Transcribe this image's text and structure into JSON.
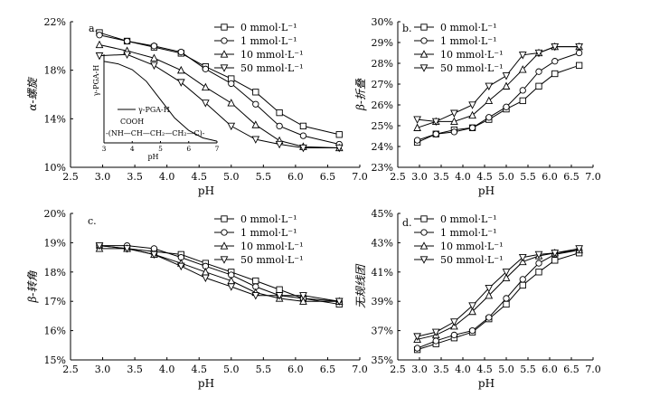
{
  "chart_data": [
    {
      "type": "line",
      "panel_label": "a.",
      "ylabel": "α-螺旋",
      "xlabel": "pH",
      "xlim": [
        2.5,
        7.0
      ],
      "ylim": [
        10,
        22
      ],
      "xticks": [
        "2.5",
        "3.0",
        "3.5",
        "4.0",
        "4.5",
        "5.0",
        "5.5",
        "6.0",
        "6.5",
        "7.0"
      ],
      "yticks": [
        "10%",
        "14%",
        "18%",
        "22%"
      ],
      "ytick_values": [
        10,
        14,
        18,
        22
      ],
      "x": [
        2.95,
        3.38,
        3.8,
        4.22,
        4.6,
        5.0,
        5.38,
        5.75,
        6.12,
        6.68
      ],
      "series": [
        {
          "name": "0 mmol·L⁻¹",
          "marker": "square",
          "values": [
            21.1,
            20.4,
            19.9,
            19.4,
            18.3,
            17.3,
            16.2,
            14.5,
            13.4,
            12.7
          ]
        },
        {
          "name": "1 mmol·L⁻¹",
          "marker": "circle",
          "values": [
            20.9,
            20.4,
            20.0,
            19.5,
            18.1,
            16.9,
            15.2,
            13.4,
            12.6,
            11.9
          ]
        },
        {
          "name": "10 mmol·L⁻¹",
          "marker": "triangle-up",
          "values": [
            20.1,
            19.6,
            19.0,
            18.0,
            16.6,
            15.3,
            13.5,
            12.2,
            11.7,
            11.6
          ]
        },
        {
          "name": "50 mmol·L⁻¹",
          "marker": "triangle-down",
          "values": [
            19.2,
            19.3,
            18.4,
            17.0,
            15.3,
            13.4,
            12.3,
            11.9,
            11.6,
            11.6
          ]
        }
      ],
      "inset": {
        "ylabel": "γ-PGA-H",
        "xlabel": "pH",
        "xticks": [
          "3",
          "4",
          "5",
          "6",
          "7"
        ],
        "xlim": [
          3,
          7
        ],
        "curve_x": [
          3.0,
          3.5,
          4.0,
          4.5,
          5.0,
          5.5,
          6.0,
          6.5,
          7.0
        ],
        "curve_y": [
          0.98,
          0.95,
          0.88,
          0.74,
          0.52,
          0.3,
          0.15,
          0.06,
          0.02
        ],
        "legend": "γ-PGA-H",
        "formula_line1": "COOH",
        "formula_line2": "-(NH—CH—CH₂—CH₂—C)-"
      }
    },
    {
      "type": "line",
      "panel_label": "b.",
      "ylabel": "β-折叠",
      "xlabel": "pH",
      "xlim": [
        2.5,
        7.0
      ],
      "ylim": [
        23,
        30
      ],
      "xticks": [
        "2.5",
        "3.0",
        "3.5",
        "4.0",
        "4.5",
        "5.0",
        "5.5",
        "6.0",
        "6.5",
        "7.0"
      ],
      "yticks": [
        "23%",
        "24%",
        "25%",
        "26%",
        "27%",
        "28%",
        "29%",
        "30%"
      ],
      "ytick_values": [
        23,
        24,
        25,
        26,
        27,
        28,
        29,
        30
      ],
      "x": [
        2.95,
        3.38,
        3.8,
        4.22,
        4.6,
        5.0,
        5.38,
        5.75,
        6.12,
        6.68
      ],
      "series": [
        {
          "name": "0 mmol·L⁻¹",
          "marker": "square",
          "values": [
            24.2,
            24.6,
            24.8,
            24.9,
            25.3,
            25.8,
            26.2,
            26.9,
            27.5,
            27.9
          ]
        },
        {
          "name": "1 mmol·L⁻¹",
          "marker": "circle",
          "values": [
            24.3,
            24.6,
            24.7,
            24.9,
            25.4,
            25.9,
            26.7,
            27.6,
            28.1,
            28.5
          ]
        },
        {
          "name": "10 mmol·L⁻¹",
          "marker": "triangle-up",
          "values": [
            24.9,
            25.2,
            25.2,
            25.5,
            26.2,
            26.9,
            27.7,
            28.5,
            28.8,
            28.8
          ]
        },
        {
          "name": "50 mmol·L⁻¹",
          "marker": "triangle-down",
          "values": [
            25.3,
            25.2,
            25.6,
            26.0,
            26.9,
            27.4,
            28.4,
            28.5,
            28.8,
            28.8
          ]
        }
      ]
    },
    {
      "type": "line",
      "panel_label": "c.",
      "ylabel": "β-转角",
      "xlabel": "pH",
      "xlim": [
        2.5,
        7.0
      ],
      "ylim": [
        15,
        20
      ],
      "xticks": [
        "2.5",
        "3.0",
        "3.5",
        "4.0",
        "4.5",
        "5.0",
        "5.5",
        "6.0",
        "6.5",
        "7.0"
      ],
      "yticks": [
        "15%",
        "16%",
        "17%",
        "18%",
        "19%",
        "20%"
      ],
      "ytick_values": [
        15,
        16,
        17,
        18,
        19,
        20
      ],
      "x": [
        2.95,
        3.38,
        3.8,
        4.22,
        4.6,
        5.0,
        5.38,
        5.75,
        6.12,
        6.68
      ],
      "series": [
        {
          "name": "0 mmol·L⁻¹",
          "marker": "square",
          "values": [
            18.9,
            18.8,
            18.7,
            18.6,
            18.3,
            18.0,
            17.7,
            17.4,
            17.1,
            16.9
          ]
        },
        {
          "name": "1 mmol·L⁻¹",
          "marker": "circle",
          "values": [
            18.9,
            18.9,
            18.8,
            18.5,
            18.2,
            17.9,
            17.5,
            17.2,
            17.1,
            17.0
          ]
        },
        {
          "name": "10 mmol·L⁻¹",
          "marker": "triangle-up",
          "values": [
            18.8,
            18.8,
            18.6,
            18.3,
            18.0,
            17.7,
            17.3,
            17.1,
            17.0,
            17.0
          ]
        },
        {
          "name": "50 mmol·L⁻¹",
          "marker": "triangle-down",
          "values": [
            18.9,
            18.8,
            18.6,
            18.2,
            17.8,
            17.5,
            17.2,
            17.2,
            17.2,
            17.0
          ]
        }
      ]
    },
    {
      "type": "line",
      "panel_label": "d.",
      "ylabel": "无规线团",
      "xlabel": "pH",
      "xlim": [
        2.5,
        7.0
      ],
      "ylim": [
        35,
        45
      ],
      "xticks": [
        "2.5",
        "3.0",
        "3.5",
        "4.0",
        "4.5",
        "5.0",
        "5.5",
        "6.0",
        "6.5",
        "7.0"
      ],
      "yticks": [
        "35%",
        "37%",
        "39%",
        "41%",
        "43%",
        "45%"
      ],
      "ytick_values": [
        35,
        37,
        39,
        41,
        43,
        45
      ],
      "x": [
        2.95,
        3.38,
        3.8,
        4.22,
        4.6,
        5.0,
        5.38,
        5.75,
        6.12,
        6.68
      ],
      "series": [
        {
          "name": "0 mmol·L⁻¹",
          "marker": "square",
          "values": [
            35.7,
            36.1,
            36.5,
            36.9,
            37.8,
            38.8,
            40.1,
            41.0,
            41.8,
            42.3
          ]
        },
        {
          "name": "1 mmol·L⁻¹",
          "marker": "circle",
          "values": [
            35.8,
            36.3,
            36.7,
            37.0,
            37.9,
            39.2,
            40.5,
            41.6,
            42.2,
            42.5
          ]
        },
        {
          "name": "10 mmol·L⁻¹",
          "marker": "triangle-up",
          "values": [
            36.4,
            36.7,
            37.3,
            38.3,
            39.4,
            40.6,
            41.7,
            42.1,
            42.3,
            42.5
          ]
        },
        {
          "name": "50 mmol·L⁻¹",
          "marker": "triangle-down",
          "values": [
            36.6,
            36.9,
            37.6,
            38.7,
            39.9,
            41.0,
            42.0,
            42.2,
            42.3,
            42.6
          ]
        }
      ]
    }
  ]
}
